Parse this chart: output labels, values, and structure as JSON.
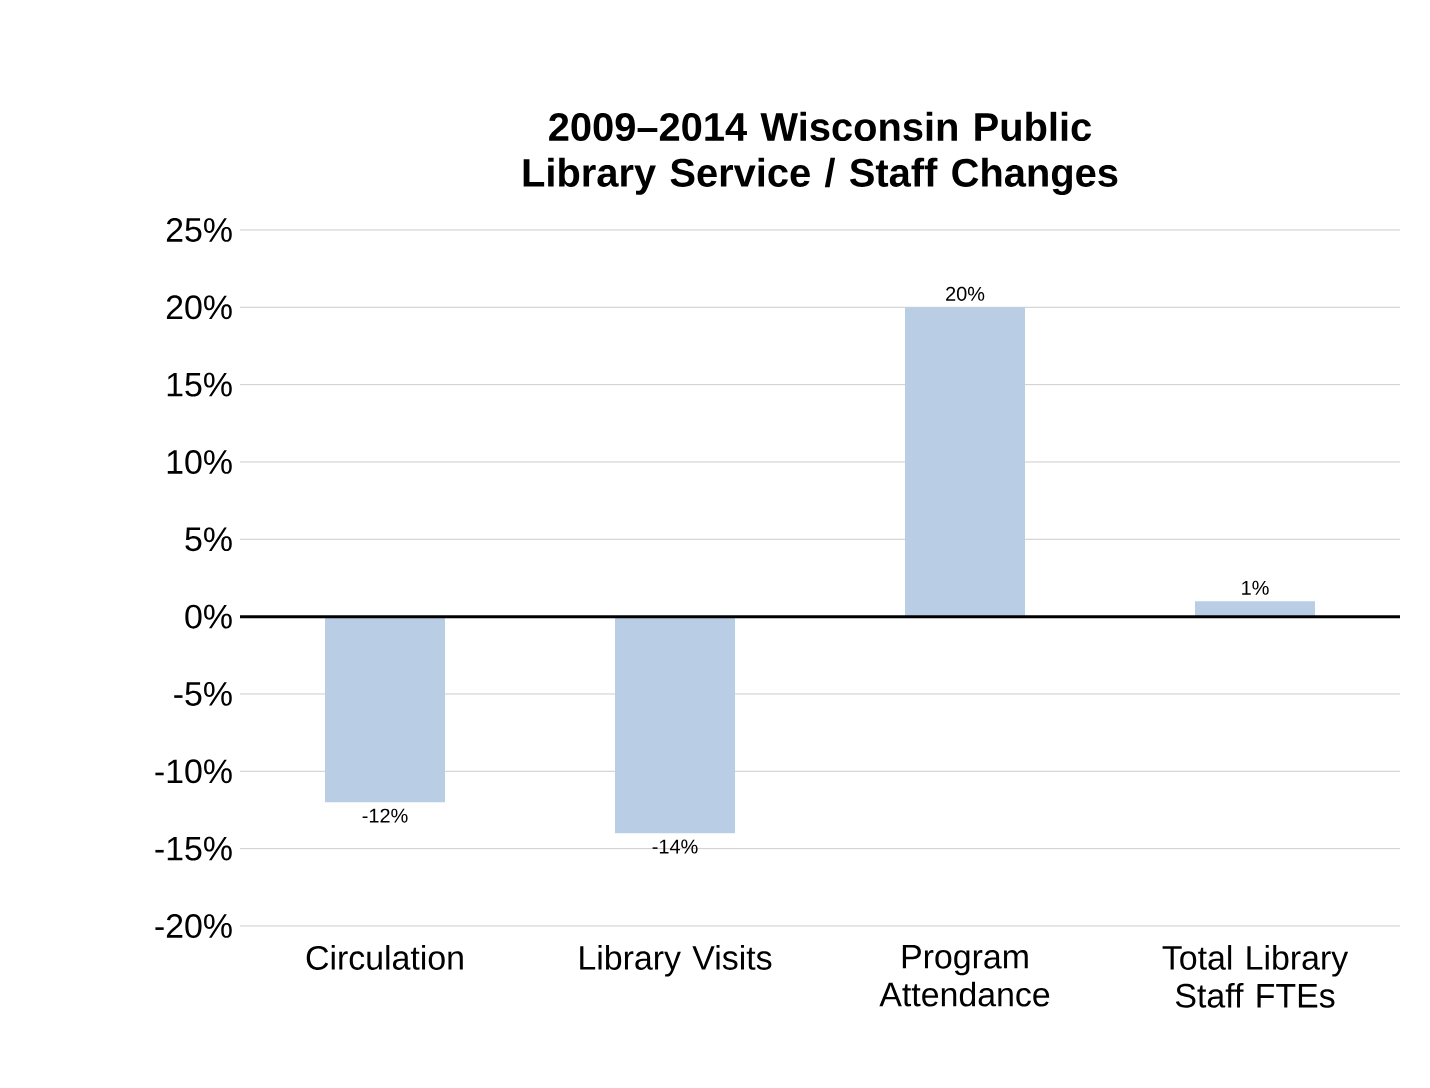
{
  "chart_data": {
    "type": "bar",
    "title": "2009–2014 Wisconsin Public Library Service / Staff Changes",
    "categories": [
      "Circulation",
      "Library Visits",
      "Program Attendance",
      "Total Library Staff FTEs"
    ],
    "values": [
      -12,
      -14,
      20,
      1
    ],
    "value_labels": [
      "-12%",
      "-14%",
      "20%",
      "1%"
    ],
    "color": "#b9cde5",
    "ylim": [
      -20,
      25
    ],
    "yticks": [
      {
        "value": -20,
        "label": "-20%"
      },
      {
        "value": -15,
        "label": "-15%"
      },
      {
        "value": -10,
        "label": "-10%"
      },
      {
        "value": -5,
        "label": "-5%"
      },
      {
        "value": 0,
        "label": "0%"
      },
      {
        "value": 5,
        "label": "5%"
      },
      {
        "value": 10,
        "label": "10%"
      },
      {
        "value": 15,
        "label": "15%"
      },
      {
        "value": 20,
        "label": "20%"
      },
      {
        "value": 25,
        "label": "25%"
      }
    ],
    "grid": "y"
  }
}
